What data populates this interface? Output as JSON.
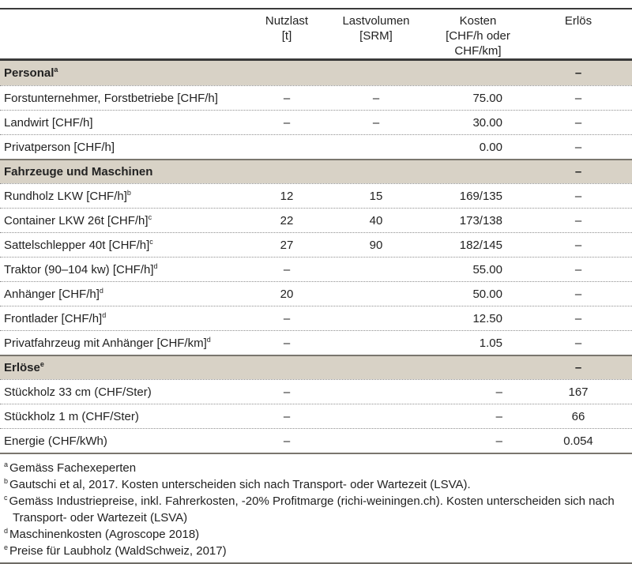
{
  "table": {
    "columns": [
      {
        "label": "",
        "unit": ""
      },
      {
        "label": "Nutzlast",
        "unit": "[t]"
      },
      {
        "label": "Lastvolumen",
        "unit": "[SRM]"
      },
      {
        "label": "Kosten",
        "unit": "[CHF/h oder CHF/km]"
      },
      {
        "label": "Erlös",
        "unit": ""
      }
    ],
    "rows": [
      {
        "type": "section",
        "label": "Personal",
        "sup": "a",
        "nutzlast": "",
        "lastvolumen": "",
        "kosten": "",
        "erloes": "–"
      },
      {
        "type": "data",
        "label": "Forstunternehmer, Forstbetriebe [CHF/h]",
        "sup": "",
        "nutzlast": "–",
        "lastvolumen": "–",
        "kosten": "75.00",
        "erloes": "–"
      },
      {
        "type": "data",
        "label": "Landwirt [CHF/h]",
        "sup": "",
        "nutzlast": "–",
        "lastvolumen": "–",
        "kosten": "30.00",
        "erloes": "–"
      },
      {
        "type": "data",
        "label": "Privatperson [CHF/h]",
        "sup": "",
        "nutzlast": "",
        "lastvolumen": "",
        "kosten": "0.00",
        "erloes": "–"
      },
      {
        "type": "section",
        "label": "Fahrzeuge und Maschinen",
        "sup": "",
        "nutzlast": "",
        "lastvolumen": "",
        "kosten": "",
        "erloes": "–"
      },
      {
        "type": "data",
        "label": "Rundholz LKW [CHF/h]",
        "sup": "b",
        "nutzlast": "12",
        "lastvolumen": "15",
        "kosten": "169/135",
        "erloes": "–"
      },
      {
        "type": "data",
        "label": "Container LKW 26t [CHF/h]",
        "sup": "c",
        "nutzlast": "22",
        "lastvolumen": "40",
        "kosten": "173/138",
        "erloes": "–"
      },
      {
        "type": "data",
        "label": "Sattelschlepper 40t [CHF/h]",
        "sup": "c",
        "nutzlast": "27",
        "lastvolumen": "90",
        "kosten": "182/145",
        "erloes": "–"
      },
      {
        "type": "data",
        "label": "Traktor (90–104 kw) [CHF/h]",
        "sup": "d",
        "nutzlast": "–",
        "lastvolumen": "",
        "kosten": "55.00",
        "erloes": "–"
      },
      {
        "type": "data",
        "label": "Anhänger [CHF/h]",
        "sup": "d",
        "nutzlast": "20",
        "lastvolumen": "",
        "kosten": "50.00",
        "erloes": "–"
      },
      {
        "type": "data",
        "label": "Frontlader [CHF/h]",
        "sup": "d",
        "nutzlast": "–",
        "lastvolumen": "",
        "kosten": "12.50",
        "erloes": "–"
      },
      {
        "type": "data",
        "label": "Privatfahrzeug mit Anhänger [CHF/km]",
        "sup": "d",
        "nutzlast": "–",
        "lastvolumen": "",
        "kosten": "1.05",
        "erloes": "–"
      },
      {
        "type": "section",
        "label": "Erlöse",
        "sup": "e",
        "nutzlast": "",
        "lastvolumen": "",
        "kosten": "",
        "erloes": "–"
      },
      {
        "type": "data",
        "label": "Stückholz 33 cm (CHF/Ster)",
        "sup": "",
        "nutzlast": "–",
        "lastvolumen": "",
        "kosten": "–",
        "erloes": "167"
      },
      {
        "type": "data",
        "label": "Stückholz 1 m (CHF/Ster)",
        "sup": "",
        "nutzlast": "–",
        "lastvolumen": "",
        "kosten": "–",
        "erloes": "66"
      },
      {
        "type": "data",
        "label": "Energie (CHF/kWh)",
        "sup": "",
        "nutzlast": "–",
        "lastvolumen": "",
        "kosten": "–",
        "erloes": "0.054"
      }
    ]
  },
  "footnotes": [
    {
      "sup": "a",
      "text": "Gemäss Fachexeperten"
    },
    {
      "sup": "b",
      "text": "Gautschi et al, 2017. Kosten unterscheiden sich nach Transport- oder Wartezeit (LSVA)."
    },
    {
      "sup": "c",
      "text": "Gemäss Industriepreise, inkl. Fahrerkosten, -20% Profitmarge (richi-weiningen.ch). Kosten unterscheiden sich nach Transport- oder Wartezeit (LSVA)"
    },
    {
      "sup": "d",
      "text": "Maschinenkosten (Agroscope 2018)"
    },
    {
      "sup": "e",
      "text": "Preise für Laubholz (WaldSchweiz, 2017)"
    }
  ],
  "colors": {
    "section_band": "#d8d2c6",
    "heavy_rule": "#3a3a3a",
    "light_rule": "#7a766e",
    "dotted_rule": "#8f8f8f",
    "text": "#222222"
  }
}
